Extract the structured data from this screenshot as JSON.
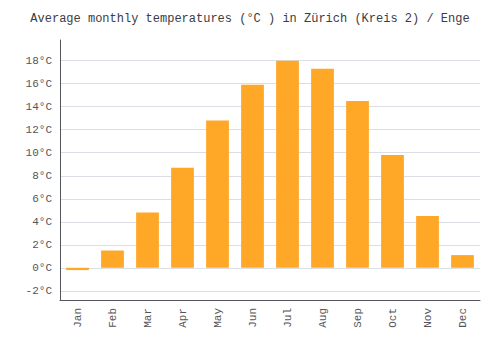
{
  "chart_data": {
    "type": "bar",
    "title": "Average monthly temperatures (°C ) in Zürich (Kreis 2) / Enge",
    "categories": [
      "Jan",
      "Feb",
      "Mar",
      "Apr",
      "May",
      "Jun",
      "Jul",
      "Aug",
      "Sep",
      "Oct",
      "Nov",
      "Dec"
    ],
    "values": [
      -0.2,
      1.5,
      4.8,
      8.7,
      12.8,
      15.9,
      18.0,
      17.3,
      14.5,
      9.8,
      4.5,
      1.1
    ],
    "color": "#FFA726",
    "ylim": [
      -2.8,
      19.8
    ],
    "yticks": [
      {
        "value": -2,
        "label": "-2°C"
      },
      {
        "value": 0,
        "label": "0°C"
      },
      {
        "value": 2,
        "label": "2°C"
      },
      {
        "value": 4,
        "label": "4°C"
      },
      {
        "value": 6,
        "label": "6°C"
      },
      {
        "value": 8,
        "label": "8°C"
      },
      {
        "value": 10,
        "label": "10°C"
      },
      {
        "value": 12,
        "label": "12°C"
      },
      {
        "value": 14,
        "label": "14°C"
      },
      {
        "value": 16,
        "label": "16°C"
      },
      {
        "value": 18,
        "label": "18°C"
      }
    ],
    "grid": true
  }
}
